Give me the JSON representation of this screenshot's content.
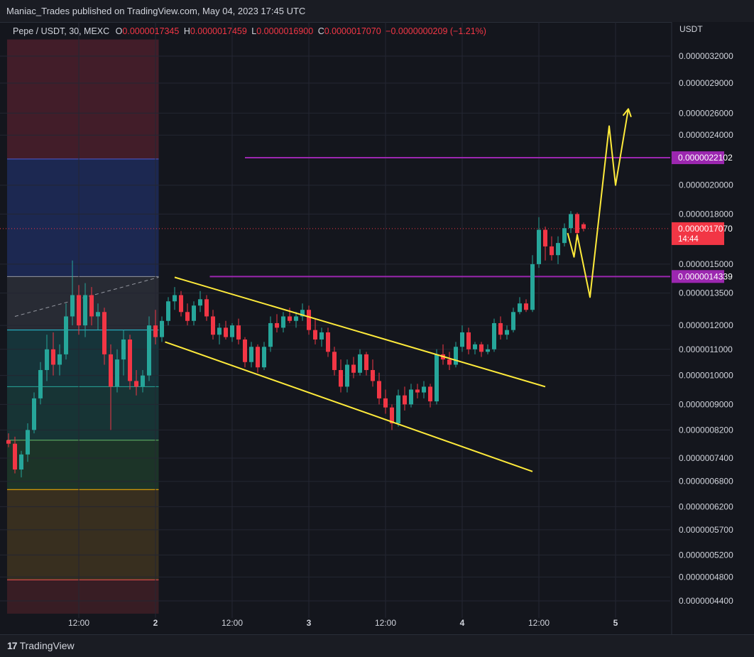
{
  "publisher": "Maniac_Trades published on TradingView.com, May 04, 2023 17:45 UTC",
  "legend": {
    "symbol": "Pepe / USDT, 30, MEXC",
    "o_label": "O",
    "o_value": "0.0000017345",
    "h_label": "H",
    "h_value": "0.0000017459",
    "l_label": "L",
    "l_value": "0.0000016900",
    "c_label": "C",
    "c_value": "0.0000017070",
    "change": "−0.0000000209 (−1.21%)"
  },
  "footer": {
    "brand": "TradingView"
  },
  "colors": {
    "background": "#14161d",
    "up": "#26a69a",
    "down": "#f23645",
    "annotation": "#ffeb3b",
    "level_line": "#9c27b0"
  },
  "chart_data": {
    "type": "candlestick",
    "title": "Pepe / USDT, 30, MEXC",
    "currency_label": "USDT",
    "y_scale": "log",
    "ylim": [
      4.2e-07,
      3.4e-06
    ],
    "y_ticks": [
      {
        "value": 3.2e-06,
        "label": "0.0000032000"
      },
      {
        "value": 2.9e-06,
        "label": "0.0000029000"
      },
      {
        "value": 2.6e-06,
        "label": "0.0000026000"
      },
      {
        "value": 2.4e-06,
        "label": "0.0000024000"
      },
      {
        "value": 2e-06,
        "label": "0.0000020000"
      },
      {
        "value": 1.8e-06,
        "label": "0.0000018000"
      },
      {
        "value": 1.5e-06,
        "label": "0.0000015000"
      },
      {
        "value": 1.35e-06,
        "label": "0.0000013500"
      },
      {
        "value": 1.2e-06,
        "label": "0.0000012000"
      },
      {
        "value": 1.1e-06,
        "label": "0.0000011000"
      },
      {
        "value": 1e-06,
        "label": "0.0000010000"
      },
      {
        "value": 9e-07,
        "label": "0.0000009000"
      },
      {
        "value": 8.2e-07,
        "label": "0.0000008200"
      },
      {
        "value": 7.4e-07,
        "label": "0.0000007400"
      },
      {
        "value": 6.8e-07,
        "label": "0.0000006800"
      },
      {
        "value": 6.2e-07,
        "label": "0.0000006200"
      },
      {
        "value": 5.7e-07,
        "label": "0.0000005700"
      },
      {
        "value": 5.2e-07,
        "label": "0.0000005200"
      },
      {
        "value": 4.8e-07,
        "label": "0.0000004800"
      },
      {
        "value": 4.4e-07,
        "label": "0.0000004400"
      }
    ],
    "x_ticks": [
      {
        "time": 11,
        "label": "12:00",
        "bold": false
      },
      {
        "time": 23,
        "label": "2",
        "bold": true
      },
      {
        "time": 35,
        "label": "12:00",
        "bold": false
      },
      {
        "time": 47,
        "label": "3",
        "bold": true
      },
      {
        "time": 59,
        "label": "12:00",
        "bold": false
      },
      {
        "time": 71,
        "label": "4",
        "bold": true
      },
      {
        "time": 83,
        "label": "12:00",
        "bold": false
      },
      {
        "time": 95,
        "label": "5",
        "bold": true
      }
    ],
    "xlim": [
      0,
      104
    ],
    "last_price": {
      "value": 1.707e-06,
      "label": "0.0000017070",
      "countdown": "14:44"
    },
    "price_levels": [
      {
        "value": 2.2102e-06,
        "label": "0.0000022102",
        "from_time": 37
      },
      {
        "value": 1.4339e-06,
        "label": "0.0000014339",
        "from_time": 31.5
      }
    ],
    "fib_zones": {
      "from_time": 0,
      "to_time": 23.5,
      "boundaries": [
        3.4e-06,
        2.2e-06,
        1.4339e-06,
        1.18e-06,
        9.6e-07,
        7.9e-07,
        6.6e-07,
        4.75e-07,
        4.2e-07
      ],
      "fills": [
        "#4a1f2b",
        "#1d2b5a",
        "#2c2f38",
        "#163a40",
        "#173a3a",
        "#1d3a2a",
        "#3e3420",
        "#3e1e26"
      ],
      "line_colors": [
        "#4a5bd4",
        "#9598a1",
        "#26c6da",
        "#26a69a",
        "#66bb6a",
        "#ffb300",
        "#ef5350"
      ]
    },
    "dashed_line": {
      "points": [
        [
          1,
          1.24e-06
        ],
        [
          23.5,
          1.43e-06
        ]
      ]
    },
    "channel_lines": [
      {
        "points": [
          [
            26,
            1.43e-06
          ],
          [
            84,
            9.6e-07
          ]
        ]
      },
      {
        "points": [
          [
            24.5,
            1.13e-06
          ],
          [
            82,
            7.05e-07
          ]
        ]
      }
    ],
    "projection_path": [
      [
        87.5,
        1.68e-06
      ],
      [
        88.5,
        1.54e-06
      ],
      [
        89,
        1.67e-06
      ],
      [
        91,
        1.33e-06
      ],
      [
        94,
        2.48e-06
      ],
      [
        95,
        2e-06
      ],
      [
        97,
        2.64e-06
      ]
    ],
    "candles": [
      {
        "t": 0,
        "o": 7.9e-07,
        "h": 8.1e-07,
        "l": 7.7e-07,
        "c": 7.8e-07
      },
      {
        "t": 1,
        "o": 7.8e-07,
        "h": 8e-07,
        "l": 7e-07,
        "c": 7.1e-07
      },
      {
        "t": 2,
        "o": 7.1e-07,
        "h": 7.6e-07,
        "l": 6.9e-07,
        "c": 7.5e-07
      },
      {
        "t": 3,
        "o": 7.5e-07,
        "h": 8.4e-07,
        "l": 7.3e-07,
        "c": 8.2e-07
      },
      {
        "t": 4,
        "o": 8.2e-07,
        "h": 9.4e-07,
        "l": 8.1e-07,
        "c": 9.2e-07
      },
      {
        "t": 5,
        "o": 9.2e-07,
        "h": 1.05e-06,
        "l": 9e-07,
        "c": 1.02e-06
      },
      {
        "t": 6,
        "o": 1.02e-06,
        "h": 1.16e-06,
        "l": 9.8e-07,
        "c": 1.1e-06
      },
      {
        "t": 7,
        "o": 1.1e-06,
        "h": 1.17e-06,
        "l": 1e-06,
        "c": 1.04e-06
      },
      {
        "t": 8,
        "o": 1.04e-06,
        "h": 1.12e-06,
        "l": 1e-06,
        "c": 1.08e-06
      },
      {
        "t": 9,
        "o": 1.08e-06,
        "h": 1.3e-06,
        "l": 1.06e-06,
        "c": 1.24e-06
      },
      {
        "t": 10,
        "o": 1.24e-06,
        "h": 1.52e-06,
        "l": 1.2e-06,
        "c": 1.34e-06
      },
      {
        "t": 11,
        "o": 1.34e-06,
        "h": 1.39e-06,
        "l": 1.16e-06,
        "c": 1.2e-06
      },
      {
        "t": 12,
        "o": 1.2e-06,
        "h": 1.4e-06,
        "l": 1.15e-06,
        "c": 1.34e-06
      },
      {
        "t": 13,
        "o": 1.34e-06,
        "h": 1.38e-06,
        "l": 1.2e-06,
        "c": 1.24e-06
      },
      {
        "t": 14,
        "o": 1.24e-06,
        "h": 1.3e-06,
        "l": 1.18e-06,
        "c": 1.26e-06
      },
      {
        "t": 15,
        "o": 1.26e-06,
        "h": 1.28e-06,
        "l": 1.04e-06,
        "c": 1.08e-06
      },
      {
        "t": 16,
        "o": 1.08e-06,
        "h": 1.12e-06,
        "l": 8.2e-07,
        "c": 9.6e-07
      },
      {
        "t": 17,
        "o": 9.6e-07,
        "h": 1.1e-06,
        "l": 9.4e-07,
        "c": 1.06e-06
      },
      {
        "t": 18,
        "o": 1.06e-06,
        "h": 1.18e-06,
        "l": 1e-06,
        "c": 1.14e-06
      },
      {
        "t": 19,
        "o": 1.14e-06,
        "h": 1.16e-06,
        "l": 9.5e-07,
        "c": 9.8e-07
      },
      {
        "t": 20,
        "o": 9.8e-07,
        "h": 1.02e-06,
        "l": 9.3e-07,
        "c": 9.6e-07
      },
      {
        "t": 21,
        "o": 9.6e-07,
        "h": 1.02e-06,
        "l": 9.4e-07,
        "c": 1e-06
      },
      {
        "t": 22,
        "o": 1e-06,
        "h": 1.24e-06,
        "l": 9.8e-07,
        "c": 1.2e-06
      },
      {
        "t": 23,
        "o": 1.2e-06,
        "h": 1.27e-06,
        "l": 1.12e-06,
        "c": 1.15e-06
      },
      {
        "t": 24,
        "o": 1.15e-06,
        "h": 1.24e-06,
        "l": 1.13e-06,
        "c": 1.22e-06
      },
      {
        "t": 25,
        "o": 1.22e-06,
        "h": 1.33e-06,
        "l": 1.2e-06,
        "c": 1.31e-06
      },
      {
        "t": 26,
        "o": 1.31e-06,
        "h": 1.38e-06,
        "l": 1.27e-06,
        "c": 1.34e-06
      },
      {
        "t": 27,
        "o": 1.34e-06,
        "h": 1.36e-06,
        "l": 1.24e-06,
        "c": 1.26e-06
      },
      {
        "t": 28,
        "o": 1.26e-06,
        "h": 1.3e-06,
        "l": 1.2e-06,
        "c": 1.22e-06
      },
      {
        "t": 29,
        "o": 1.22e-06,
        "h": 1.31e-06,
        "l": 1.2e-06,
        "c": 1.29e-06
      },
      {
        "t": 30,
        "o": 1.29e-06,
        "h": 1.36e-06,
        "l": 1.26e-06,
        "c": 1.32e-06
      },
      {
        "t": 31,
        "o": 1.32e-06,
        "h": 1.34e-06,
        "l": 1.22e-06,
        "c": 1.24e-06
      },
      {
        "t": 32,
        "o": 1.24e-06,
        "h": 1.27e-06,
        "l": 1.14e-06,
        "c": 1.16e-06
      },
      {
        "t": 33,
        "o": 1.16e-06,
        "h": 1.21e-06,
        "l": 1.12e-06,
        "c": 1.19e-06
      },
      {
        "t": 34,
        "o": 1.19e-06,
        "h": 1.22e-06,
        "l": 1.14e-06,
        "c": 1.15e-06
      },
      {
        "t": 35,
        "o": 1.15e-06,
        "h": 1.21e-06,
        "l": 1.13e-06,
        "c": 1.2e-06
      },
      {
        "t": 36,
        "o": 1.2e-06,
        "h": 1.23e-06,
        "l": 1.12e-06,
        "c": 1.14e-06
      },
      {
        "t": 37,
        "o": 1.14e-06,
        "h": 1.15e-06,
        "l": 1.03e-06,
        "c": 1.05e-06
      },
      {
        "t": 38,
        "o": 1.05e-06,
        "h": 1.13e-06,
        "l": 1.03e-06,
        "c": 1.11e-06
      },
      {
        "t": 39,
        "o": 1.11e-06,
        "h": 1.12e-06,
        "l": 1.01e-06,
        "c": 1.03e-06
      },
      {
        "t": 40,
        "o": 1.03e-06,
        "h": 1.13e-06,
        "l": 1.02e-06,
        "c": 1.11e-06
      },
      {
        "t": 41,
        "o": 1.11e-06,
        "h": 1.24e-06,
        "l": 1.09e-06,
        "c": 1.21e-06
      },
      {
        "t": 42,
        "o": 1.21e-06,
        "h": 1.25e-06,
        "l": 1.17e-06,
        "c": 1.19e-06
      },
      {
        "t": 43,
        "o": 1.19e-06,
        "h": 1.26e-06,
        "l": 1.17e-06,
        "c": 1.24e-06
      },
      {
        "t": 44,
        "o": 1.24e-06,
        "h": 1.28e-06,
        "l": 1.21e-06,
        "c": 1.22e-06
      },
      {
        "t": 45,
        "o": 1.22e-06,
        "h": 1.26e-06,
        "l": 1.19e-06,
        "c": 1.24e-06
      },
      {
        "t": 46,
        "o": 1.24e-06,
        "h": 1.3e-06,
        "l": 1.22e-06,
        "c": 1.27e-06
      },
      {
        "t": 47,
        "o": 1.27e-06,
        "h": 1.29e-06,
        "l": 1.16e-06,
        "c": 1.18e-06
      },
      {
        "t": 48,
        "o": 1.18e-06,
        "h": 1.23e-06,
        "l": 1.12e-06,
        "c": 1.14e-06
      },
      {
        "t": 49,
        "o": 1.14e-06,
        "h": 1.19e-06,
        "l": 1.11e-06,
        "c": 1.17e-06
      },
      {
        "t": 50,
        "o": 1.17e-06,
        "h": 1.19e-06,
        "l": 1.07e-06,
        "c": 1.09e-06
      },
      {
        "t": 51,
        "o": 1.09e-06,
        "h": 1.11e-06,
        "l": 1e-06,
        "c": 1.02e-06
      },
      {
        "t": 52,
        "o": 1.02e-06,
        "h": 1.06e-06,
        "l": 9.4e-07,
        "c": 9.6e-07
      },
      {
        "t": 53,
        "o": 9.6e-07,
        "h": 1.06e-06,
        "l": 9.4e-07,
        "c": 1.04e-06
      },
      {
        "t": 54,
        "o": 1.04e-06,
        "h": 1.07e-06,
        "l": 9.9e-07,
        "c": 1.01e-06
      },
      {
        "t": 55,
        "o": 1.01e-06,
        "h": 1.1e-06,
        "l": 1e-06,
        "c": 1.08e-06
      },
      {
        "t": 56,
        "o": 1.08e-06,
        "h": 1.09e-06,
        "l": 1e-06,
        "c": 1.02e-06
      },
      {
        "t": 57,
        "o": 1.02e-06,
        "h": 1.06e-06,
        "l": 9.6e-07,
        "c": 9.8e-07
      },
      {
        "t": 58,
        "o": 9.8e-07,
        "h": 1.01e-06,
        "l": 9e-07,
        "c": 9.2e-07
      },
      {
        "t": 59,
        "o": 9.2e-07,
        "h": 9.5e-07,
        "l": 8.7e-07,
        "c": 8.9e-07
      },
      {
        "t": 60,
        "o": 8.9e-07,
        "h": 9e-07,
        "l": 8.2e-07,
        "c": 8.4e-07
      },
      {
        "t": 61,
        "o": 8.4e-07,
        "h": 9.5e-07,
        "l": 8.3e-07,
        "c": 9.3e-07
      },
      {
        "t": 62,
        "o": 9.3e-07,
        "h": 9.6e-07,
        "l": 8.8e-07,
        "c": 9e-07
      },
      {
        "t": 63,
        "o": 9e-07,
        "h": 9.7e-07,
        "l": 8.9e-07,
        "c": 9.5e-07
      },
      {
        "t": 64,
        "o": 9.5e-07,
        "h": 9.7e-07,
        "l": 9.2e-07,
        "c": 9.4e-07
      },
      {
        "t": 65,
        "o": 9.4e-07,
        "h": 9.8e-07,
        "l": 9.2e-07,
        "c": 9.6e-07
      },
      {
        "t": 66,
        "o": 9.6e-07,
        "h": 9.7e-07,
        "l": 8.9e-07,
        "c": 9.1e-07
      },
      {
        "t": 67,
        "o": 9.1e-07,
        "h": 1.1e-06,
        "l": 9e-07,
        "c": 1.08e-06
      },
      {
        "t": 68,
        "o": 1.08e-06,
        "h": 1.12e-06,
        "l": 1.04e-06,
        "c": 1.06e-06
      },
      {
        "t": 69,
        "o": 1.06e-06,
        "h": 1.09e-06,
        "l": 1.02e-06,
        "c": 1.04e-06
      },
      {
        "t": 70,
        "o": 1.04e-06,
        "h": 1.13e-06,
        "l": 1.03e-06,
        "c": 1.11e-06
      },
      {
        "t": 71,
        "o": 1.11e-06,
        "h": 1.2e-06,
        "l": 1.09e-06,
        "c": 1.17e-06
      },
      {
        "t": 72,
        "o": 1.17e-06,
        "h": 1.19e-06,
        "l": 1.08e-06,
        "c": 1.1e-06
      },
      {
        "t": 73,
        "o": 1.1e-06,
        "h": 1.13e-06,
        "l": 1.08e-06,
        "c": 1.12e-06
      },
      {
        "t": 74,
        "o": 1.12e-06,
        "h": 1.13e-06,
        "l": 1.07e-06,
        "c": 1.09e-06
      },
      {
        "t": 75,
        "o": 1.09e-06,
        "h": 1.12e-06,
        "l": 1.08e-06,
        "c": 1.1e-06
      },
      {
        "t": 76,
        "o": 1.1e-06,
        "h": 1.23e-06,
        "l": 1.09e-06,
        "c": 1.21e-06
      },
      {
        "t": 77,
        "o": 1.21e-06,
        "h": 1.24e-06,
        "l": 1.14e-06,
        "c": 1.16e-06
      },
      {
        "t": 78,
        "o": 1.16e-06,
        "h": 1.2e-06,
        "l": 1.14e-06,
        "c": 1.18e-06
      },
      {
        "t": 79,
        "o": 1.18e-06,
        "h": 1.28e-06,
        "l": 1.17e-06,
        "c": 1.26e-06
      },
      {
        "t": 80,
        "o": 1.26e-06,
        "h": 1.33e-06,
        "l": 1.25e-06,
        "c": 1.3e-06
      },
      {
        "t": 81,
        "o": 1.3e-06,
        "h": 1.32e-06,
        "l": 1.26e-06,
        "c": 1.27e-06
      },
      {
        "t": 82,
        "o": 1.27e-06,
        "h": 1.55e-06,
        "l": 1.26e-06,
        "c": 1.5e-06
      },
      {
        "t": 83,
        "o": 1.5e-06,
        "h": 1.78e-06,
        "l": 1.48e-06,
        "c": 1.7e-06
      },
      {
        "t": 84,
        "o": 1.7e-06,
        "h": 1.72e-06,
        "l": 1.52e-06,
        "c": 1.6e-06
      },
      {
        "t": 85,
        "o": 1.6e-06,
        "h": 1.66e-06,
        "l": 1.52e-06,
        "c": 1.55e-06
      },
      {
        "t": 86,
        "o": 1.55e-06,
        "h": 1.66e-06,
        "l": 1.5e-06,
        "c": 1.62e-06
      },
      {
        "t": 87,
        "o": 1.62e-06,
        "h": 1.74e-06,
        "l": 1.6e-06,
        "c": 1.71e-06
      },
      {
        "t": 88,
        "o": 1.71e-06,
        "h": 1.82e-06,
        "l": 1.68e-06,
        "c": 1.8e-06
      },
      {
        "t": 89,
        "o": 1.8e-06,
        "h": 1.81e-06,
        "l": 1.64e-06,
        "c": 1.68e-06
      },
      {
        "t": 90,
        "o": 1.7345e-06,
        "h": 1.7459e-06,
        "l": 1.69e-06,
        "c": 1.707e-06
      }
    ]
  }
}
